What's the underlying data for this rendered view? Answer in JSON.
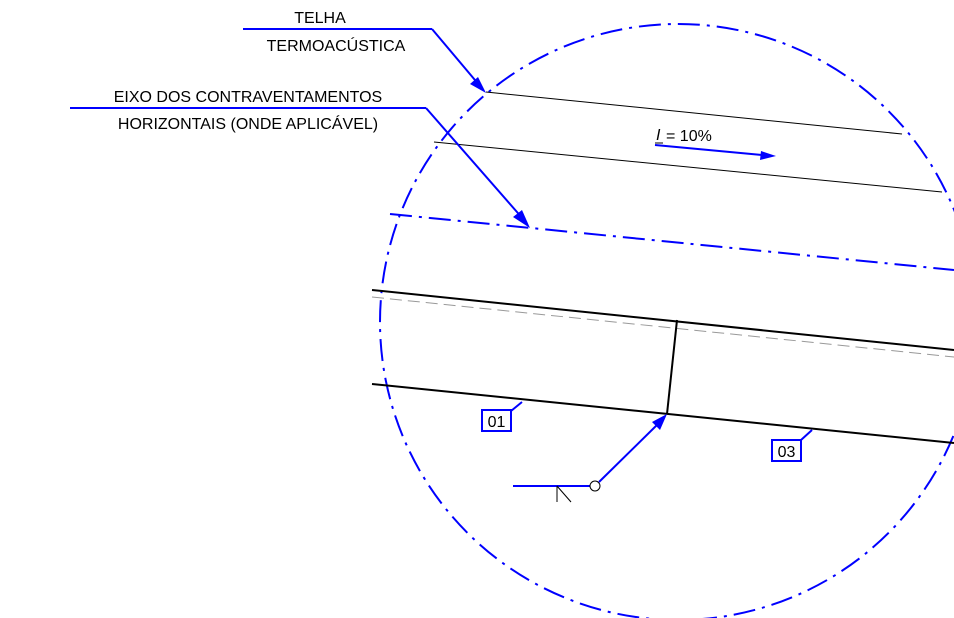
{
  "labels": {
    "roof_tile_line1": "TELHA",
    "roof_tile_line2": "TERMOACÚSTICA",
    "bracing_line1": "EIXO DOS CONTRAVENTAMENTOS",
    "bracing_line2": "HORIZONTAIS (ONDE APLICÁVEL)",
    "slope_symbol": "I",
    "slope_value": "= 10%"
  },
  "tags": {
    "left_member": "01",
    "right_member": "03"
  },
  "colors": {
    "annotation": "#0000ff",
    "linework": "#000000",
    "hidden_line": "#999999",
    "background": "#ffffff"
  }
}
